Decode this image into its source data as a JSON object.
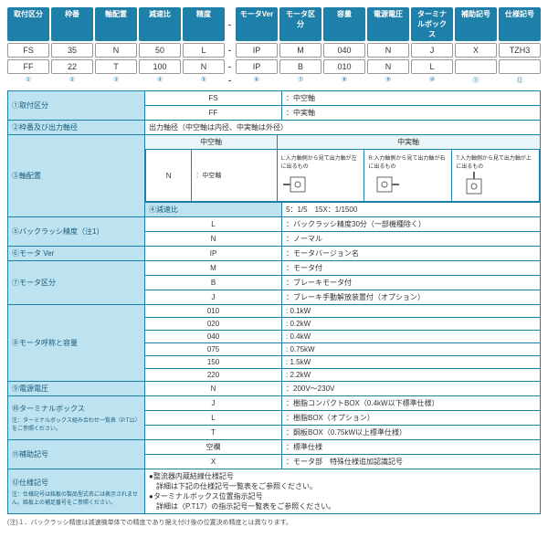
{
  "headers": [
    "取付区分",
    "枠番",
    "軸配置",
    "減速比",
    "精度",
    "モータVer",
    "モータ区分",
    "容量",
    "電源電圧",
    "ターミナルボックス",
    "補助記号",
    "仕様記号"
  ],
  "row1": [
    "FS",
    "35",
    "N",
    "50",
    "L",
    "IP",
    "M",
    "040",
    "N",
    "J",
    "X",
    "TZH3"
  ],
  "row2": [
    "FF",
    "22",
    "T",
    "100",
    "N",
    "IP",
    "B",
    "010",
    "N",
    "L",
    "",
    ""
  ],
  "nums": [
    "①",
    "②",
    "③",
    "④",
    "⑤",
    "⑥",
    "⑦",
    "⑧",
    "⑨",
    "⑩",
    "⑪",
    "⑫"
  ],
  "spec": {
    "r1": {
      "h": "①取付区分",
      "a": "FS",
      "at": "：中空軸",
      "b": "FF",
      "bt": "：中実軸"
    },
    "r2": {
      "h": "②枠番及び出力軸径",
      "t": "出力軸径（中空軸は内径、中実軸は外径）"
    },
    "r3": {
      "h": "③軸配置",
      "c1": "中空軸",
      "c2": "中実軸",
      "n": "N",
      "nt": "：中空軸",
      "l": "L:入力軸側から見て出力軸が左に出るもの",
      "r": "R:入力軸側から見て出力軸が右に出るもの",
      "tt": "T:入力軸側から見て出力軸が上に出るもの"
    },
    "r4": {
      "h": "④減速比",
      "t": "5：1/5　15X：1/1500"
    },
    "r5": {
      "h": "⑤バックラッシ精度（注1）",
      "a": "L",
      "at": "：バックラッシ精度30分（一部機種除く）",
      "b": "N",
      "bt": "：ノーマル"
    },
    "r6": {
      "h": "⑥モータ Ver",
      "a": "IP",
      "at": "：モータバージョン名"
    },
    "r7": {
      "h": "⑦モータ区分",
      "a": "M",
      "at": "：モータ付",
      "b": "B",
      "bt": "：ブレーキモータ付",
      "c": "J",
      "ct": "：ブレーキ手動解放装置付（オプション）"
    },
    "r8": {
      "h": "⑧モータ呼称と容量",
      "rows": [
        [
          "010",
          ": 0.1kW"
        ],
        [
          "020",
          ": 0.2kW"
        ],
        [
          "040",
          ": 0.4kW"
        ],
        [
          "075",
          ": 0.75kW"
        ],
        [
          "150",
          ": 1.5kW"
        ],
        [
          "220",
          ": 2.2kW"
        ]
      ]
    },
    "r9": {
      "h": "⑨電源電圧",
      "a": "N",
      "at": "：200V～230V"
    },
    "r10": {
      "h": "⑩ターミナルボックス",
      "note": "注：ターミナルボックス組み合わせ一覧表〈P.T11〉をご参照ください。",
      "rows": [
        [
          "J",
          "：樹脂コンパクトBOX（0.4kW以下標準仕様）"
        ],
        [
          "L",
          "：樹脂BOX（オプション）"
        ],
        [
          "T",
          "：鋼板BOX（0.75kW以上標準仕様）"
        ]
      ]
    },
    "r11": {
      "h": "⑪補助記号",
      "note": "",
      "a": "空欄",
      "at": "：標準仕様",
      "b": "X",
      "bt": "：モータ部　特殊仕様追加認識記号"
    },
    "r12": {
      "h": "⑫仕様記号",
      "note": "注：仕様記号は銘板の製品型式名には表示されません。銘板上の補足番号をご参照ください。",
      "t1": "●整流器内蔵結線仕様記号",
      "t2": "　詳細は下記の仕様記号一覧表をご参照ください。",
      "t3": "●ターミナルボックス位置指示記号",
      "t4": "　詳細は〈P.T17〉の指示記号一覧表をご参照ください。"
    }
  },
  "foot": "(注)１．バックラッシ精度は減速機単体での精度であり据え付け後の位置決め精度とは異なります。"
}
